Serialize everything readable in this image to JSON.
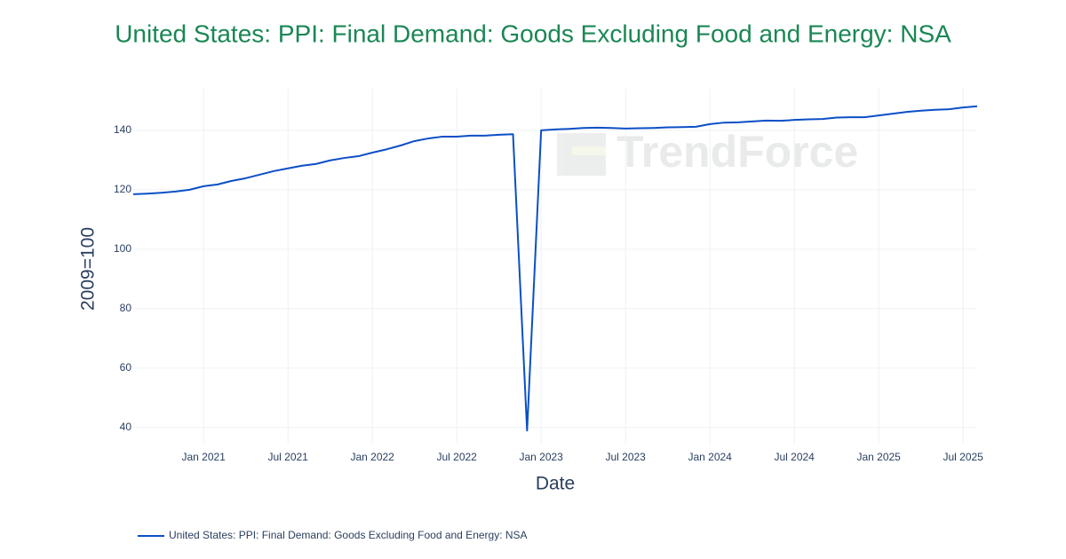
{
  "chart_data": {
    "type": "line",
    "title": "United States: PPI: Final Demand: Goods Excluding Food and Energy: NSA",
    "watermark": "TrendForce",
    "x_label": "Date",
    "y_label": "2009=100",
    "x": [
      "2020-08",
      "2020-09",
      "2020-10",
      "2020-11",
      "2020-12",
      "2021-01",
      "2021-02",
      "2021-03",
      "2021-04",
      "2021-05",
      "2021-06",
      "2021-07",
      "2021-08",
      "2021-09",
      "2021-10",
      "2021-11",
      "2021-12",
      "2022-01",
      "2022-02",
      "2022-03",
      "2022-04",
      "2022-05",
      "2022-06",
      "2022-07",
      "2022-08",
      "2022-09",
      "2022-10",
      "2022-11",
      "2022-12",
      "2023-01",
      "2023-02",
      "2023-03",
      "2023-04",
      "2023-05",
      "2023-06",
      "2023-07",
      "2023-08",
      "2023-09",
      "2023-10",
      "2023-11",
      "2023-12",
      "2024-01",
      "2024-02",
      "2024-03",
      "2024-04",
      "2024-05",
      "2024-06",
      "2024-07",
      "2024-08",
      "2024-09",
      "2024-10",
      "2024-11",
      "2024-12",
      "2025-01",
      "2025-02",
      "2025-03",
      "2025-04",
      "2025-05",
      "2025-06",
      "2025-07",
      "2025-08"
    ],
    "series": [
      {
        "name": "United States: PPI: Final Demand: Goods Excluding Food and Energy: NSA",
        "color": "#0b4fc6",
        "values": [
          118.5,
          118.7,
          119.0,
          119.4,
          120.0,
          121.2,
          121.8,
          123.0,
          123.9,
          125.1,
          126.3,
          127.2,
          128.1,
          128.7,
          129.9,
          130.7,
          131.3,
          132.5,
          133.6,
          134.9,
          136.4,
          137.3,
          137.9,
          137.9,
          138.2,
          138.2,
          138.5,
          138.7,
          39,
          140.0,
          140.3,
          140.5,
          140.8,
          140.9,
          140.8,
          140.6,
          140.7,
          140.8,
          141.0,
          141.1,
          141.2,
          142.1,
          142.6,
          142.7,
          143.0,
          143.3,
          143.2,
          143.5,
          143.7,
          143.8,
          144.3,
          144.4,
          144.4,
          145.0,
          145.6,
          146.2,
          146.6,
          146.9,
          147.1,
          147.7,
          148.1
        ]
      }
    ],
    "xlim": [
      "2020-08",
      "2025-08"
    ],
    "xticks": [
      {
        "value": "2021-01",
        "label": "Jan 2021"
      },
      {
        "value": "2021-07",
        "label": "Jul 2021"
      },
      {
        "value": "2022-01",
        "label": "Jan 2022"
      },
      {
        "value": "2022-07",
        "label": "Jul 2022"
      },
      {
        "value": "2023-01",
        "label": "Jan 2023"
      },
      {
        "value": "2023-07",
        "label": "Jul 2023"
      },
      {
        "value": "2024-01",
        "label": "Jan 2024"
      },
      {
        "value": "2024-07",
        "label": "Jul 2024"
      },
      {
        "value": "2025-01",
        "label": "Jan 2025"
      },
      {
        "value": "2025-07",
        "label": "Jul 2025"
      }
    ],
    "ylim": [
      34.6,
      154
    ],
    "yticks": [
      40,
      60,
      80,
      100,
      120,
      140
    ],
    "grid": true
  }
}
